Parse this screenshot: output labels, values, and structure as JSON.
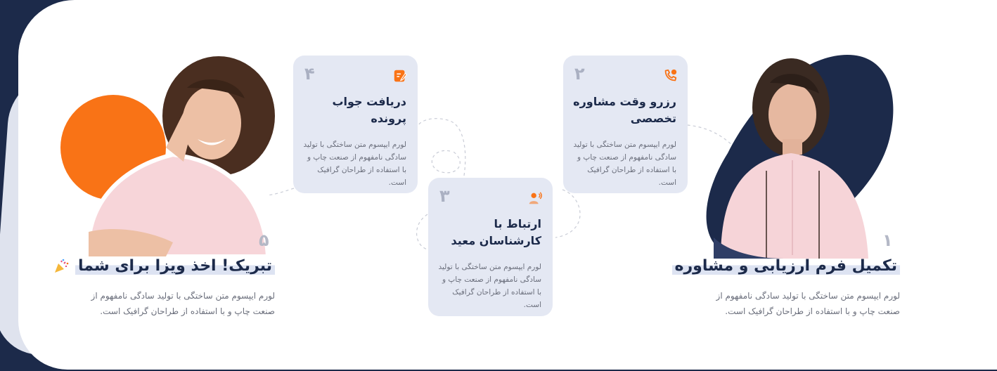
{
  "colors": {
    "navy": "#1c2a4a",
    "orange": "#f97316",
    "card_bg": "#e4e8f3",
    "text_muted": "#6b6f7c"
  },
  "step1": {
    "number": "۱",
    "title": "تکمیل فرم ارزیابی و مشاوره",
    "text": "لورم ایپسوم متن ساختگی با تولید سادگی نامفهوم از صنعت چاپ و با استفاده از طراحان گرافیک است."
  },
  "step2": {
    "number": "۲",
    "icon": "phone-call-icon",
    "title": "رزرو وقت مشاوره تخصصی",
    "text": "لورم ایپسوم متن ساختگی با تولید سادگی نامفهوم از صنعت چاپ و با استفاده از طراحان گرافیک است."
  },
  "step3": {
    "number": "۳",
    "icon": "person-speaking-icon",
    "title": "ارتباط با کارشناسان معید",
    "text": "لورم ایپسوم متن ساختگی با تولید سادگی نامفهوم از صنعت چاپ و با استفاده از طراحان گرافیک است."
  },
  "step4": {
    "number": "۴",
    "icon": "document-edit-icon",
    "title": "دریافت جواب پرونده",
    "text": "لورم ایپسوم متن ساختگی با تولید سادگی نامفهوم از صنعت چاپ و با استفاده از طراحان گرافیک است."
  },
  "step5": {
    "number": "۵",
    "icon": "party-popper-icon",
    "title": "تبریک! اخذ ویزا برای شما",
    "text": "لورم ایپسوم متن ساختگی با تولید سادگی نامفهوم از صنعت چاپ و با استفاده از طراحان گرافیک است."
  }
}
